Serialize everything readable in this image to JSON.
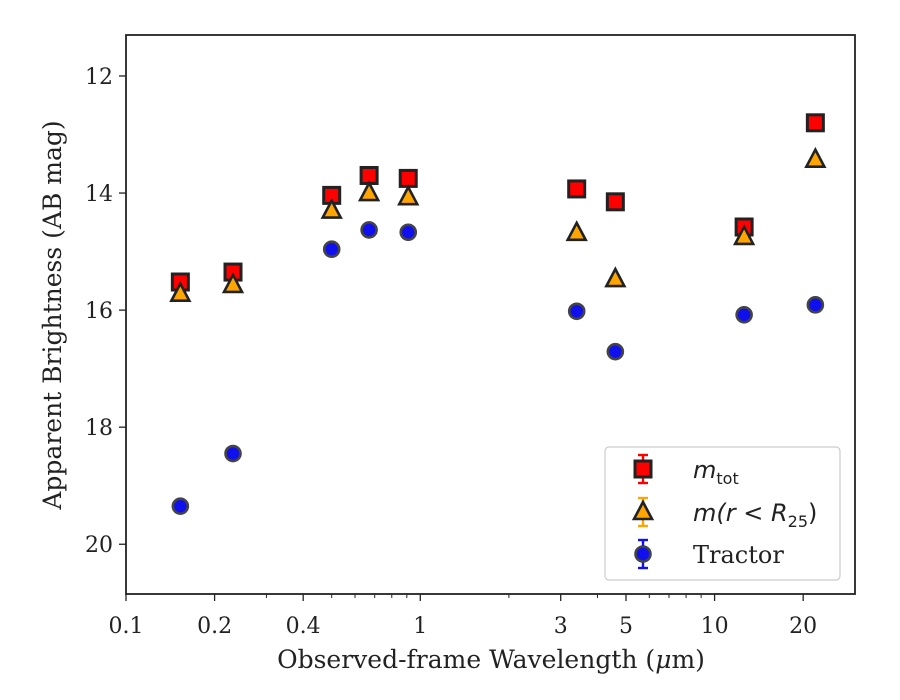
{
  "chart_data": {
    "type": "scatter",
    "xlabel_pre": "Observed-frame Wavelength (",
    "xlabel_mu": "μ",
    "xlabel_post": "m)",
    "ylabel": "Apparent Brightness (AB mag)",
    "xscale": "log",
    "xlim": [
      0.1,
      30
    ],
    "ylim": [
      20.85,
      11.3
    ],
    "y_inverted": true,
    "xticks": [
      0.1,
      0.2,
      0.4,
      1,
      3,
      5,
      10,
      20
    ],
    "xtick_labels": [
      "0.1",
      "0.2",
      "0.4",
      "1",
      "3",
      "5",
      "10",
      "20"
    ],
    "yticks": [
      12,
      14,
      16,
      18,
      20
    ],
    "ytick_labels": [
      "12",
      "14",
      "16",
      "18",
      "20"
    ],
    "grid": false,
    "legend_position": "lower-right",
    "series": [
      {
        "name_base": "m",
        "name_sub": "tot",
        "marker": "square",
        "color": "#ff0000",
        "edge": "#222222",
        "x": [
          0.153,
          0.231,
          0.5,
          0.67,
          0.91,
          3.4,
          4.6,
          12.6,
          22.0
        ],
        "y": [
          15.52,
          15.35,
          14.04,
          13.7,
          13.75,
          13.93,
          14.15,
          14.58,
          12.8
        ]
      },
      {
        "name_base": "m(r < R",
        "name_sub": "25",
        "name_tail": ")",
        "marker": "triangle",
        "color": "#ffa500",
        "edge": "#222222",
        "x": [
          0.153,
          0.231,
          0.5,
          0.67,
          0.91,
          3.4,
          4.6,
          12.6,
          22.0
        ],
        "y": [
          15.72,
          15.57,
          14.3,
          14.0,
          14.07,
          14.68,
          15.47,
          14.75,
          13.43
        ]
      },
      {
        "name": "Tractor",
        "marker": "circle",
        "color": "#1010ee",
        "edge": "#444444",
        "x": [
          0.153,
          0.231,
          0.5,
          0.67,
          0.91,
          3.4,
          4.6,
          12.6,
          22.0
        ],
        "y": [
          19.35,
          18.45,
          14.96,
          14.63,
          14.67,
          16.02,
          16.71,
          16.08,
          15.91
        ]
      }
    ]
  }
}
